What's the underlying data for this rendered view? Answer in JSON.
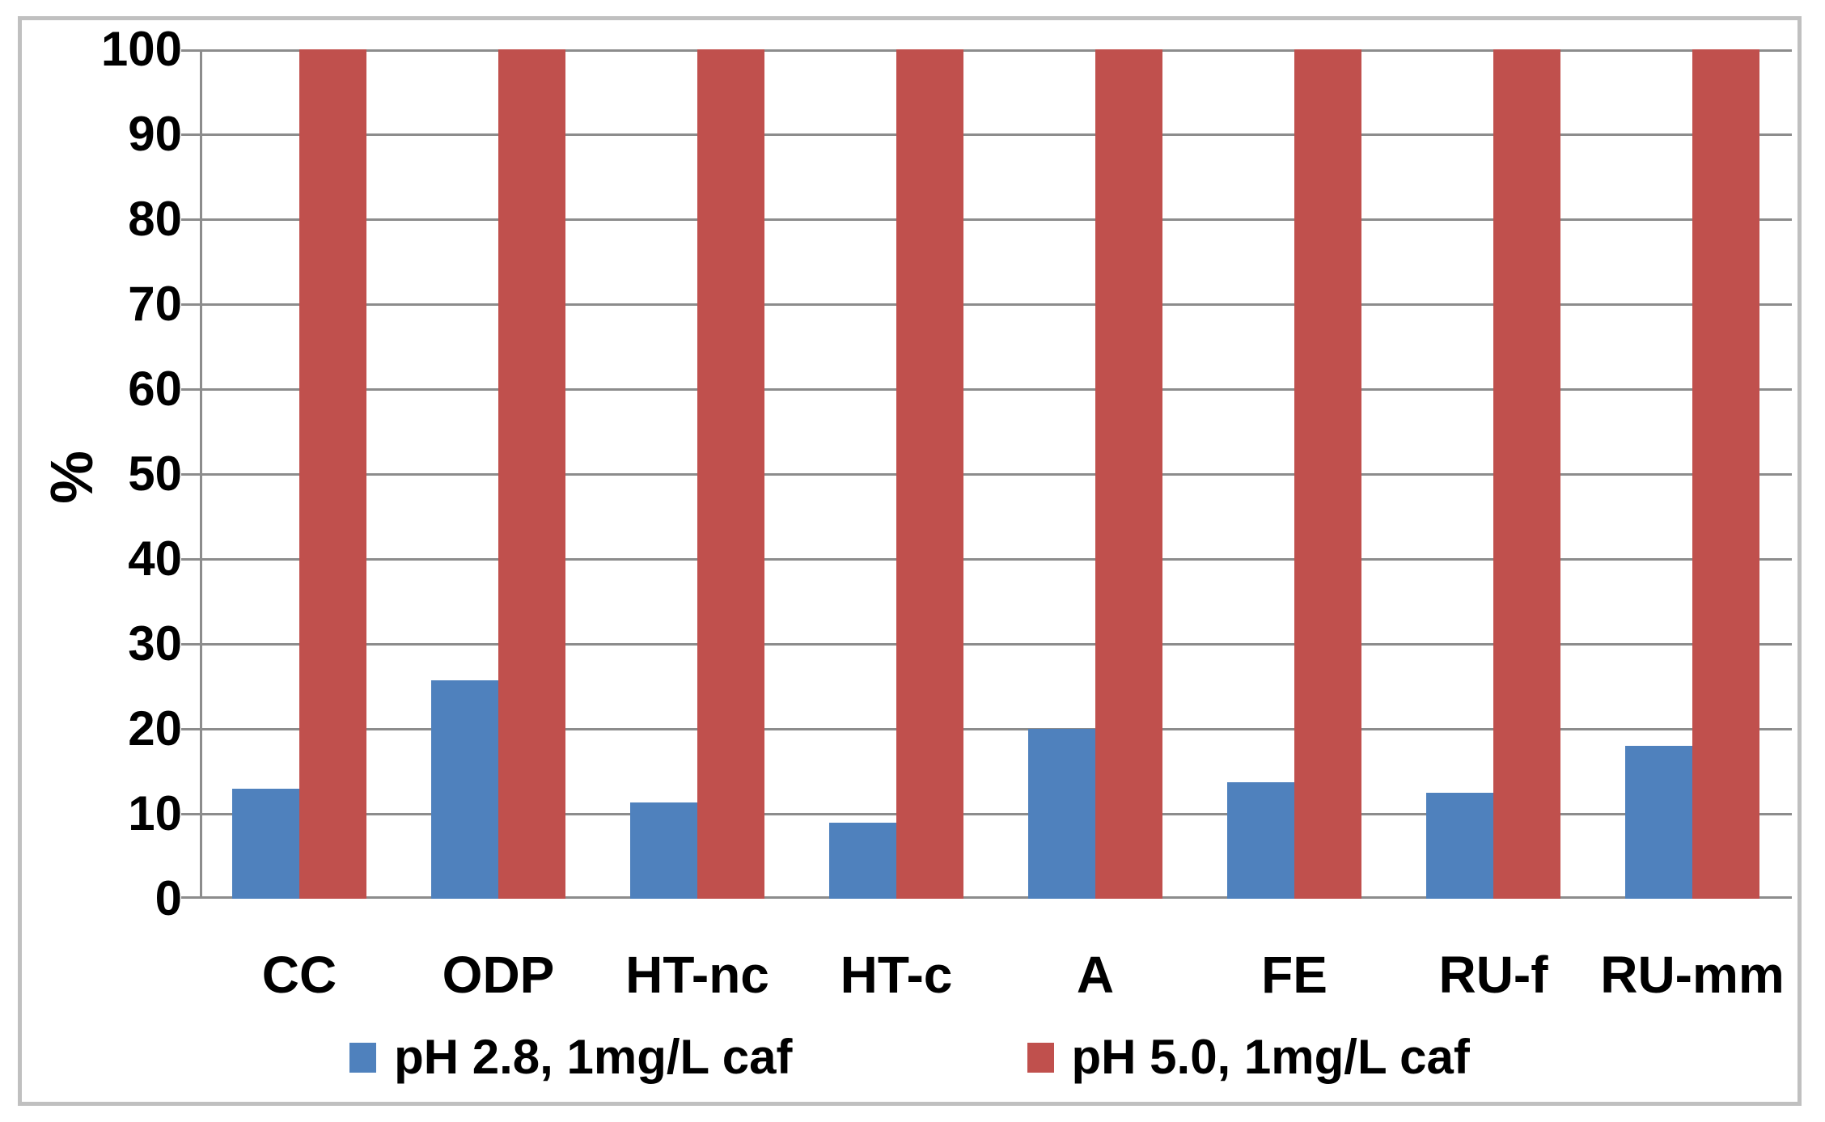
{
  "chart_data": {
    "type": "bar",
    "title": "",
    "categories": [
      "CC",
      "ODP",
      "HT-nc",
      "HT-c",
      "A",
      "FE",
      "RU-f",
      "RU-mm"
    ],
    "series": [
      {
        "name": "pH 2.8, 1mg/L caf",
        "color": "#4F81BD",
        "values": [
          13,
          25.7,
          11.3,
          9,
          20,
          13.7,
          12.5,
          18
        ]
      },
      {
        "name": "pH 5.0, 1mg/L caf",
        "color": "#C0504D",
        "values": [
          100,
          100,
          100,
          100,
          100,
          100,
          100,
          100
        ]
      }
    ],
    "xlabel": "",
    "ylabel": "%",
    "ylim": [
      0,
      100
    ],
    "ytick_step": 10,
    "yticks": [
      100,
      90,
      80,
      70,
      60,
      50,
      40,
      30,
      20,
      10,
      0
    ],
    "grid": true,
    "legend_position": "bottom",
    "colors": {
      "gridline": "#8C8C8C",
      "axis": "#8C8C8C",
      "frame_border": "#C0C0C0",
      "text": "#000000",
      "background": "#FFFFFF"
    }
  }
}
